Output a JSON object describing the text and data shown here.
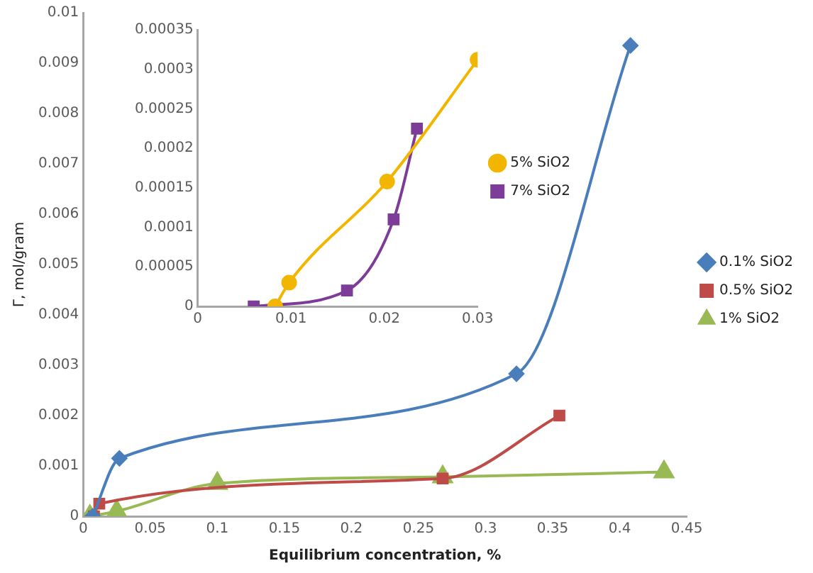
{
  "chart_data": [
    {
      "type": "line",
      "xlabel": "Equilibrium concentration, %",
      "ylabel": "Γ, mol/gram",
      "xlim": [
        0,
        0.45
      ],
      "xticks": [
        0,
        0.05,
        0.1,
        0.15,
        0.2,
        0.25,
        0.3,
        0.35,
        0.4,
        0.45
      ],
      "ylim": [
        0,
        0.01
      ],
      "yticks": [
        0,
        0.001,
        0.002,
        0.003,
        0.004,
        0.005,
        0.006,
        0.007,
        0.008,
        0.009,
        0.01
      ],
      "grid": false,
      "legend": "right",
      "series": [
        {
          "name": "0.1% SiO2",
          "color": "#4a7ebb",
          "marker": "diamond",
          "x": [
            0.007,
            0.027,
            0.323,
            0.408
          ],
          "values": [
            0,
            0.00115,
            0.00283,
            0.00935
          ]
        },
        {
          "name": "0.5% SiO2",
          "color": "#be4b48",
          "marker": "square",
          "x": [
            0.008,
            0.012,
            0.268,
            0.355
          ],
          "values": [
            0,
            0.00025,
            0.00075,
            0.002
          ]
        },
        {
          "name": "1% SiO2",
          "color": "#98b954",
          "marker": "triangle",
          "x": [
            0.005,
            0.025,
            0.1,
            0.268,
            0.433
          ],
          "values": [
            0,
            0.0001,
            0.00065,
            0.00078,
            0.00088
          ]
        }
      ]
    },
    {
      "type": "line",
      "xlim": [
        0,
        0.03
      ],
      "xticks": [
        0,
        0.01,
        0.02,
        0.03
      ],
      "ylim": [
        0,
        0.00035
      ],
      "yticks": [
        0,
        {
          "value": 5e-05,
          "label": "0.00005"
        },
        0.0001,
        0.00015,
        0.0002,
        0.00025,
        0.0003,
        0.00035
      ],
      "grid": false,
      "legend": "right",
      "series": [
        {
          "name": "5% SiO2",
          "color": "#f2b600",
          "marker": "circle",
          "x": [
            0.0083,
            0.0098,
            0.0203,
            0.03
          ],
          "values": [
            0,
            3e-05,
            0.000158,
            0.000312
          ]
        },
        {
          "name": "7% SiO2",
          "color": "#7d3c98",
          "marker": "square",
          "x": [
            0.006,
            0.016,
            0.021,
            0.0235
          ],
          "values": [
            0,
            2e-05,
            0.00011,
            0.000225
          ]
        }
      ]
    }
  ]
}
